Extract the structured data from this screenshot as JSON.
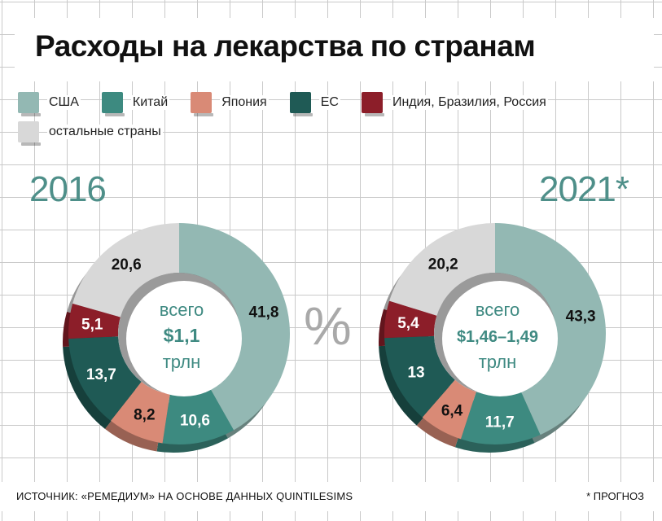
{
  "title": "Расходы на лекарства по странам",
  "legend": [
    {
      "label": "США",
      "color": "#93b8b3"
    },
    {
      "label": "Китай",
      "color": "#3d8a80"
    },
    {
      "label": "Япония",
      "color": "#d98a76"
    },
    {
      "label": "ЕС",
      "color": "#1f5a55"
    },
    {
      "label": "Индия, Бразилия, Россия",
      "color": "#8c1e29"
    },
    {
      "label": "остальные страны",
      "color": "#d8d8d8"
    }
  ],
  "percent_symbol": "%",
  "source": "ИСТОЧНИК: «РЕМЕДИУМ» НА ОСНОВЕ ДАННЫХ QUINTILESIMS",
  "note": "* ПРОГНОЗ",
  "chart_data": [
    {
      "type": "pie",
      "title": "2016",
      "categories": [
        "США",
        "Китай",
        "Япония",
        "ЕС",
        "Индия, Бразилия, Россия",
        "остальные страны"
      ],
      "values": [
        41.8,
        10.6,
        8.2,
        13.7,
        5.1,
        20.6
      ],
      "labels": [
        "41,8",
        "10,6",
        "8,2",
        "13,7",
        "5,1",
        "20,6"
      ],
      "center": {
        "line1": "всего",
        "line2": "$1,1",
        "line3": "трлн"
      }
    },
    {
      "type": "pie",
      "title": "2021*",
      "categories": [
        "США",
        "Китай",
        "Япония",
        "ЕС",
        "Индия, Бразилия, Россия",
        "остальные страны"
      ],
      "values": [
        43.3,
        11.7,
        6.4,
        13,
        5.4,
        20.2
      ],
      "labels": [
        "43,3",
        "11,7",
        "6,4",
        "13",
        "5,4",
        "20,2"
      ],
      "center": {
        "line1": "всего",
        "line2": "$1,46–1,49",
        "line3": "трлн"
      }
    }
  ]
}
